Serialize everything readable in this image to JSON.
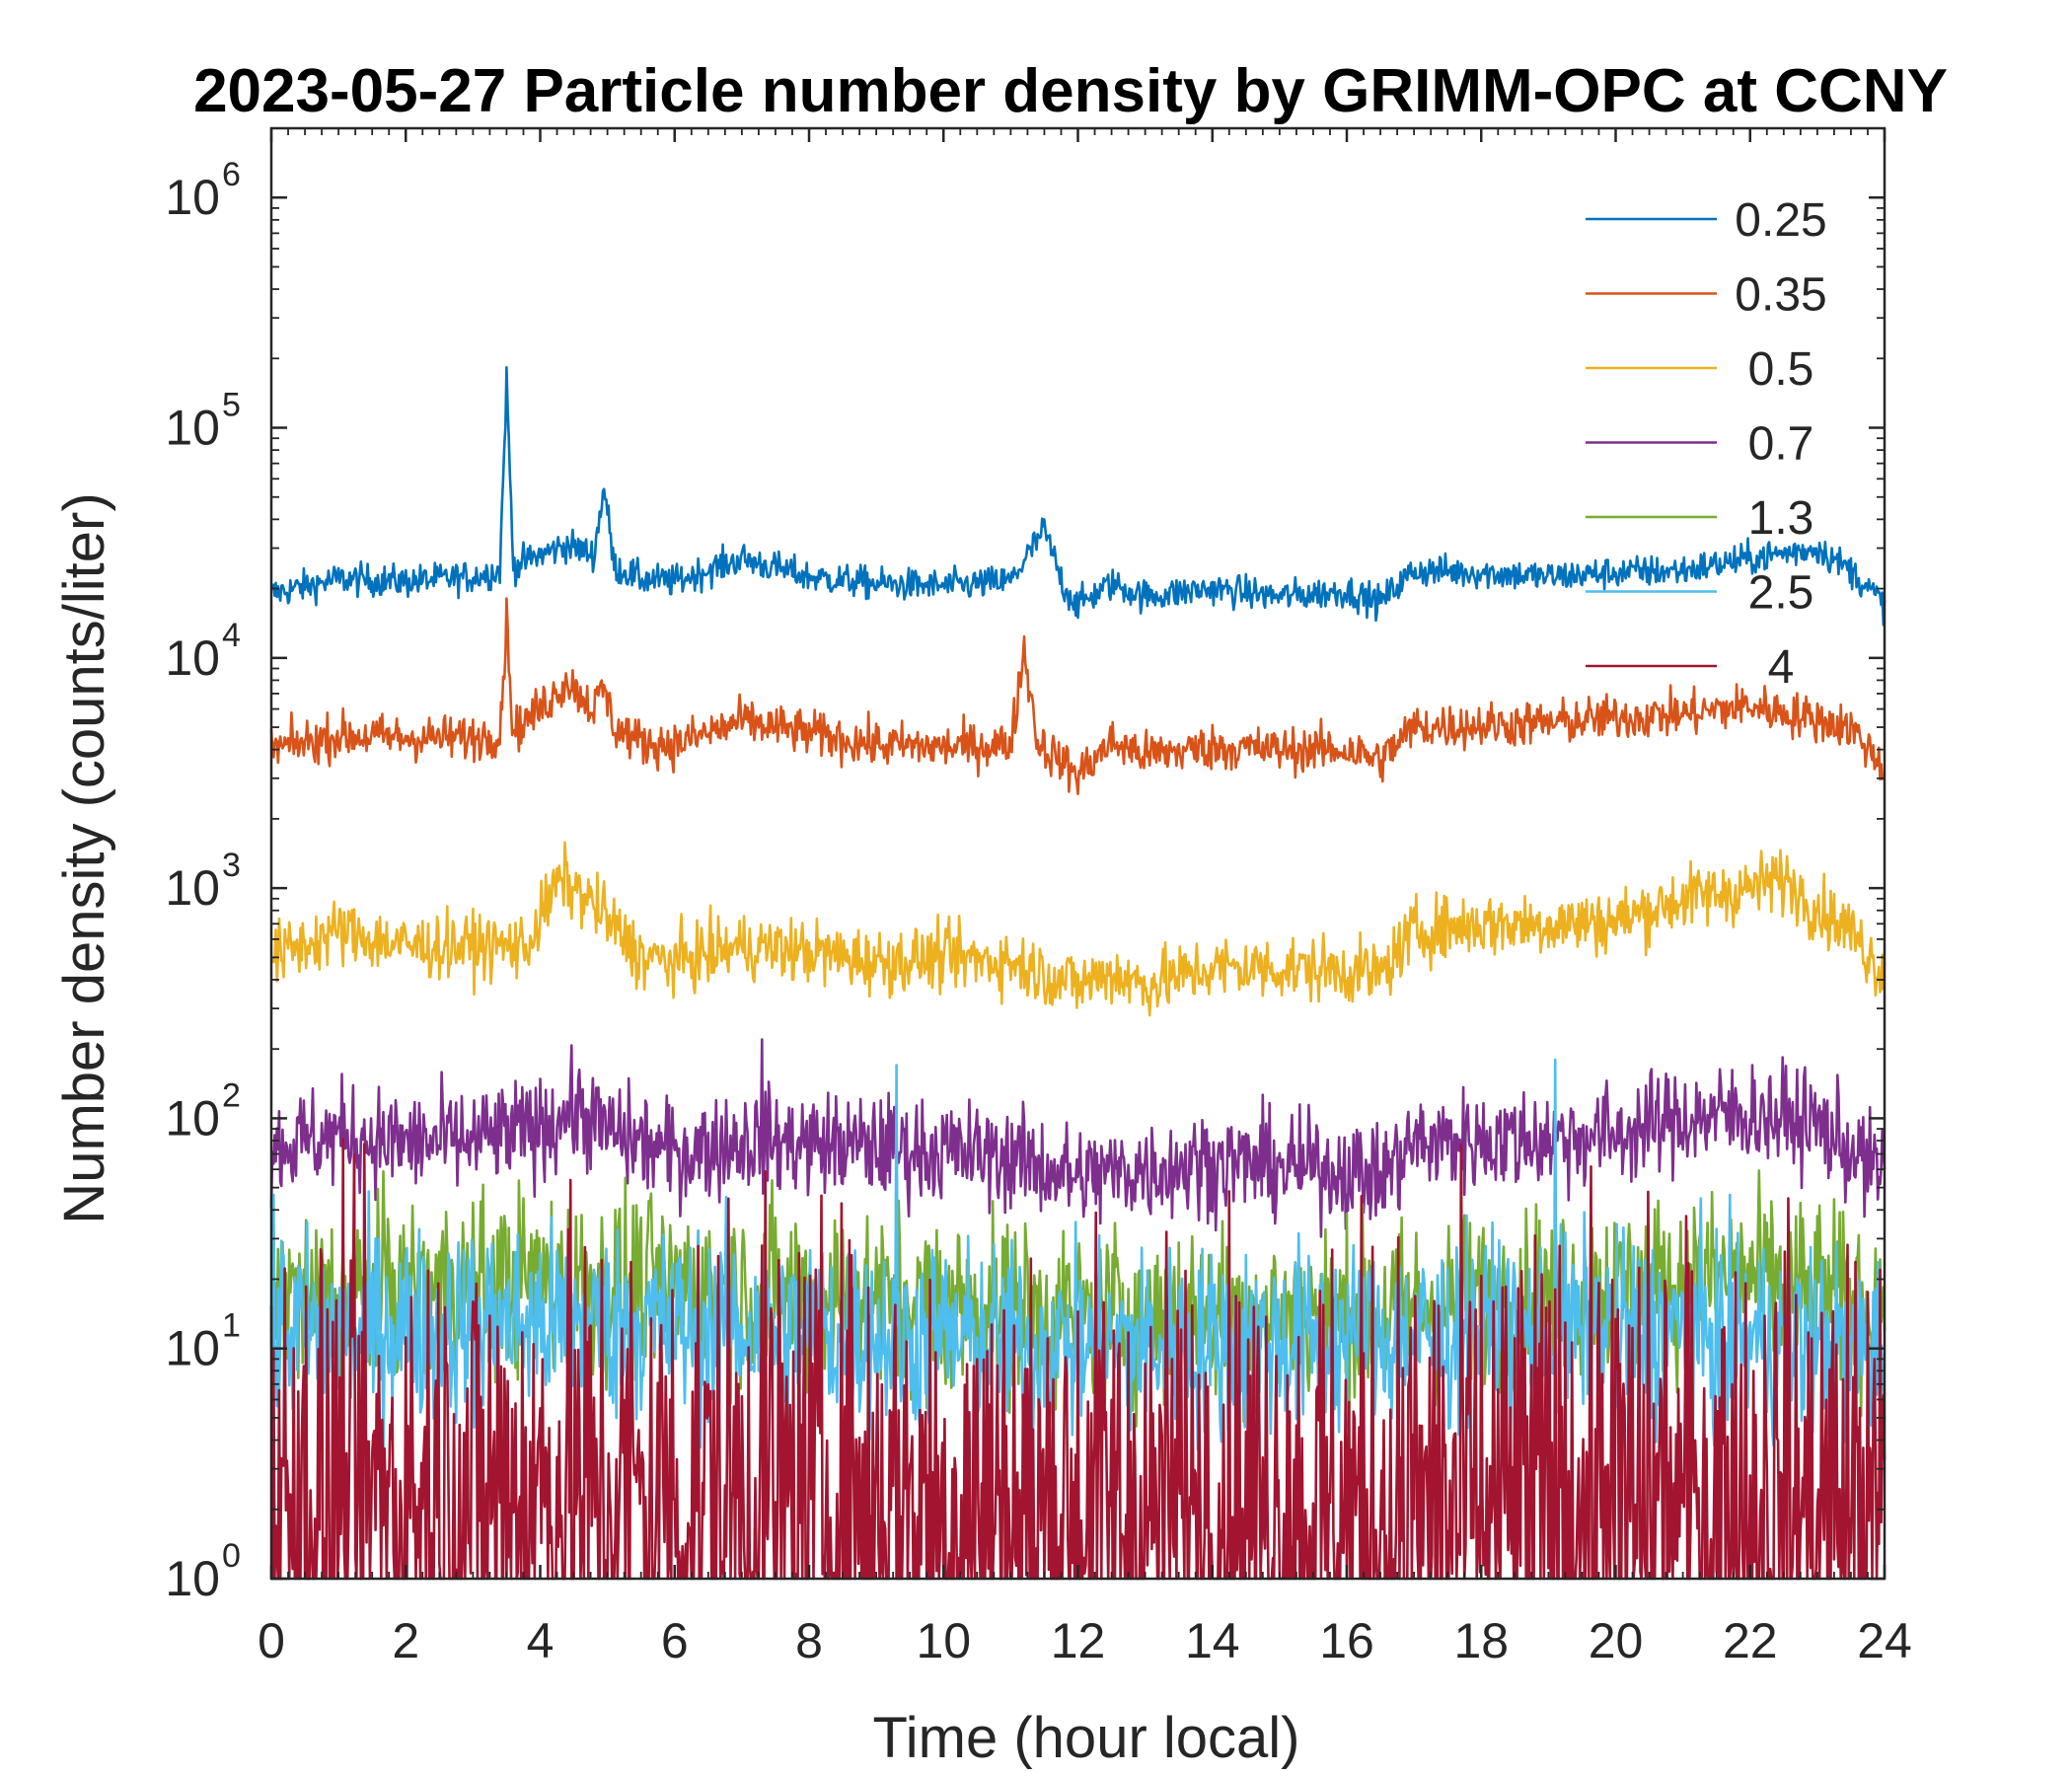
{
  "chart_data": {
    "type": "line",
    "title": "2023-05-27 Particle number density by GRIMM-OPC at CCNY",
    "xlabel": "Time (hour local)",
    "ylabel": "Number density (counts/liter)",
    "xlim": [
      0,
      24
    ],
    "xticks": [
      0,
      2,
      4,
      6,
      8,
      10,
      12,
      14,
      16,
      18,
      20,
      22,
      24
    ],
    "xtick_labels": [
      "0",
      "2",
      "4",
      "6",
      "8",
      "10",
      "12",
      "14",
      "16",
      "18",
      "20",
      "22",
      "24"
    ],
    "yscale": "log",
    "ylim": [
      1,
      2000000
    ],
    "yticks": [
      1,
      10,
      100,
      1000,
      10000,
      100000,
      1000000
    ],
    "ytick_labels": [
      {
        "base": "10",
        "exp": "0"
      },
      {
        "base": "10",
        "exp": "1"
      },
      {
        "base": "10",
        "exp": "2"
      },
      {
        "base": "10",
        "exp": "3"
      },
      {
        "base": "10",
        "exp": "4"
      },
      {
        "base": "10",
        "exp": "5"
      },
      {
        "base": "10",
        "exp": "6"
      }
    ],
    "legend_position": "top-right",
    "series": [
      {
        "name": "0.25",
        "color": "#0072BD",
        "noise": 0.05,
        "x": [
          0,
          1,
          2,
          3,
          3.4,
          3.5,
          3.6,
          4,
          4.4,
          4.8,
          4.95,
          5.1,
          5.5,
          6,
          7,
          8,
          9,
          10,
          11,
          11.5,
          11.8,
          12,
          12.5,
          13,
          14,
          15,
          16,
          16.5,
          17,
          18,
          19,
          20,
          21,
          22,
          23,
          23.5,
          24
        ],
        "y": [
          19000,
          22000,
          21500,
          22500,
          24000,
          160000,
          25000,
          28000,
          31000,
          28000,
          56000,
          25000,
          22000,
          21500,
          27000,
          22500,
          21000,
          20500,
          21500,
          36000,
          20000,
          17000,
          21000,
          18500,
          20000,
          18500,
          19500,
          17500,
          24000,
          23500,
          22500,
          23500,
          24000,
          27000,
          30000,
          24000,
          17000
        ]
      },
      {
        "name": "0.35",
        "color": "#D95319",
        "noise": 0.07,
        "x": [
          0,
          1,
          2,
          3,
          3.4,
          3.5,
          3.6,
          4,
          4.4,
          4.8,
          4.95,
          5.1,
          5.5,
          6,
          7,
          8,
          9,
          10,
          11,
          11.2,
          11.4,
          12,
          12.5,
          13,
          14,
          15,
          16,
          16.5,
          17,
          18,
          19,
          20,
          21,
          22,
          23,
          23.5,
          24
        ],
        "y": [
          4000,
          4600,
          4500,
          4500,
          4700,
          14500,
          4800,
          6000,
          8000,
          6000,
          7500,
          5000,
          4300,
          4200,
          5300,
          4700,
          4200,
          4100,
          4200,
          11000,
          4300,
          3100,
          4300,
          3800,
          4100,
          4000,
          4000,
          3600,
          5000,
          5100,
          5200,
          5500,
          5700,
          6200,
          5400,
          5000,
          3300
        ]
      },
      {
        "name": "0.5",
        "color": "#EDB120",
        "noise": 0.1,
        "x": [
          0,
          1,
          2,
          3,
          3.8,
          4.3,
          4.8,
          5.5,
          6,
          7,
          8,
          9,
          10,
          11,
          12,
          12.5,
          13,
          14,
          15,
          16,
          16.5,
          17,
          18,
          19,
          20,
          21,
          22,
          22.5,
          23,
          23.5,
          24
        ],
        "y": [
          500,
          650,
          560,
          560,
          560,
          1100,
          850,
          500,
          480,
          560,
          530,
          480,
          500,
          480,
          380,
          430,
          380,
          450,
          450,
          440,
          420,
          650,
          700,
          700,
          720,
          900,
          1000,
          1100,
          820,
          650,
          420
        ]
      },
      {
        "name": "0.7",
        "color": "#7E2F8E",
        "noise": 0.16,
        "spikes": [
          [
            7.3,
            220
          ]
        ],
        "x": [
          0,
          1,
          2,
          3,
          4,
          4.5,
          5,
          6,
          7,
          8,
          9,
          10,
          11,
          12,
          13,
          14,
          15,
          16,
          16.5,
          17,
          18,
          19,
          20,
          21,
          22,
          23,
          24
        ],
        "y": [
          75,
          85,
          78,
          80,
          90,
          110,
          88,
          70,
          80,
          78,
          75,
          72,
          68,
          55,
          60,
          65,
          62,
          60,
          55,
          78,
          80,
          82,
          85,
          100,
          105,
          95,
          55
        ]
      },
      {
        "name": "1.3",
        "color": "#77AC30",
        "noise": 0.28,
        "x": [
          0,
          4,
          8,
          12,
          16,
          20,
          22,
          24
        ],
        "y": [
          16,
          20,
          17,
          14,
          14,
          18,
          20,
          15
        ]
      },
      {
        "name": "2.5",
        "color": "#4DBEEE",
        "noise": 0.3,
        "spikes": [
          [
            9.3,
            170
          ],
          [
            19.1,
            180
          ]
        ],
        "x": [
          0,
          4,
          8,
          12,
          16,
          20,
          24
        ],
        "y": [
          12,
          13,
          12,
          10,
          11,
          12,
          10
        ]
      },
      {
        "name": "4",
        "color": "#A2142F",
        "noise": 0.85,
        "spikes": [
          [
            7.3,
            28
          ]
        ],
        "x": [
          0,
          4,
          8,
          12,
          16,
          20,
          24
        ],
        "y": [
          2,
          2.3,
          2,
          1.8,
          1.8,
          2,
          1.8
        ]
      }
    ]
  }
}
